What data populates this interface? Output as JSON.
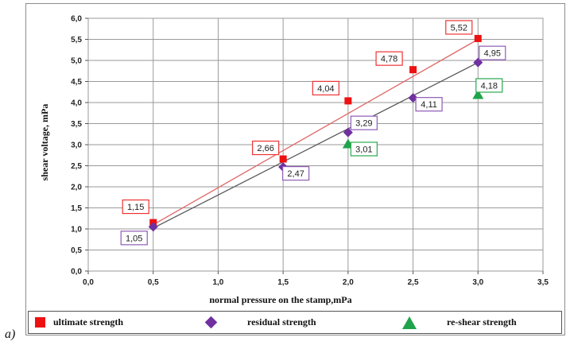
{
  "panel_label": "a)",
  "chart_data": {
    "type": "scatter",
    "title": "",
    "xlabel": "normal pressure on the stamp,mPa",
    "ylabel": "shear voltage, mPa",
    "xlim": [
      0,
      3.5
    ],
    "ylim": [
      0,
      6
    ],
    "xticks": [
      "0,0",
      "0,5",
      "1,0",
      "1,5",
      "2,0",
      "2,5",
      "3,0",
      "3,5"
    ],
    "yticks": [
      "0,0",
      "0,5",
      "1,0",
      "1,5",
      "2,0",
      "2,5",
      "3,0",
      "3,5",
      "4,0",
      "4,5",
      "5,0",
      "5,5",
      "6,0"
    ],
    "grid": true,
    "legend_position": "bottom",
    "series": [
      {
        "name": "ultimate strength",
        "marker": "square",
        "color": "#ee1111",
        "line_color": "#e06666",
        "x": [
          0.5,
          1.5,
          2.0,
          2.5,
          3.0
        ],
        "y": [
          1.15,
          2.66,
          4.04,
          4.78,
          5.52
        ],
        "labels": [
          "1,15",
          "2,66",
          "4,04",
          "4,78",
          "5,52"
        ],
        "label_border": "#ee3333",
        "trendline": [
          [
            0.5,
            1.1
          ],
          [
            3.0,
            5.5
          ]
        ]
      },
      {
        "name": "residual strength",
        "marker": "diamond",
        "color": "#7030a0",
        "line_color": "#555555",
        "x": [
          0.5,
          1.5,
          2.0,
          2.5,
          3.0
        ],
        "y": [
          1.05,
          2.47,
          3.29,
          4.11,
          4.95
        ],
        "labels": [
          "1,05",
          "2,47",
          "3,29",
          "4,11",
          "4,95"
        ],
        "label_border": "#8e5bb5",
        "trendline": [
          [
            0.5,
            1.02
          ],
          [
            3.0,
            4.95
          ]
        ]
      },
      {
        "name": "re-shear strength",
        "marker": "triangle",
        "color": "#1fa34a",
        "x": [
          2.0,
          3.0
        ],
        "y": [
          3.01,
          4.18
        ],
        "labels": [
          "3,01",
          "4,18"
        ],
        "label_border": "#2aa84f"
      }
    ]
  }
}
